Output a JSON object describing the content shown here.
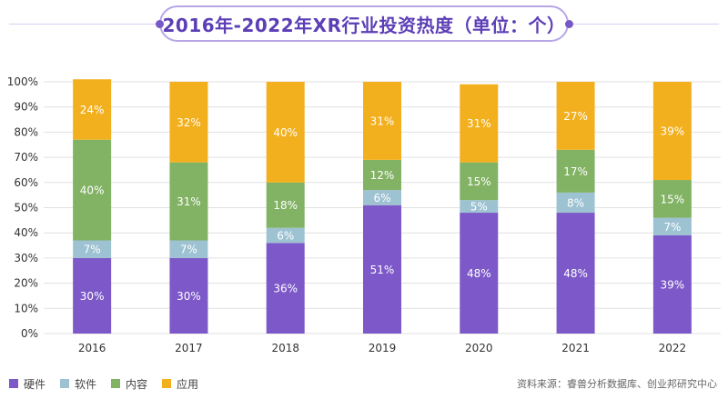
{
  "header": {
    "title": "2016年-2022年XR行业投资热度（单位：个）"
  },
  "colors": {
    "hardware": "#7c58c8",
    "software": "#9dc2d2",
    "content": "#82b264",
    "application": "#f2b01e",
    "title_text": "#5c3fb6",
    "title_border": "#b7a6e6"
  },
  "source": "资料来源：睿兽分析数据库、创业邦研究中心",
  "chart_data": {
    "type": "bar",
    "stacked": true,
    "categories": [
      "2016",
      "2017",
      "2018",
      "2019",
      "2020",
      "2021",
      "2022"
    ],
    "y_ticks": [
      "0%",
      "10%",
      "20%",
      "30%",
      "40%",
      "50%",
      "60%",
      "70%",
      "80%",
      "90%",
      "100%"
    ],
    "ylim": [
      0,
      100
    ],
    "legend_position": "bottom-left",
    "series": [
      {
        "name": "硬件",
        "color": "#7c58c8",
        "values": [
          30,
          30,
          36,
          51,
          48,
          48,
          39
        ],
        "labels": [
          "30%",
          "30%",
          "36%",
          "51%",
          "48%",
          "48%",
          "39%"
        ]
      },
      {
        "name": "软件",
        "color": "#9dc2d2",
        "values": [
          7,
          7,
          6,
          6,
          5,
          8,
          7
        ],
        "labels": [
          "7%",
          "7%",
          "6%",
          "6%",
          "5%",
          "8%",
          "7%"
        ]
      },
      {
        "name": "内容",
        "color": "#82b264",
        "values": [
          40,
          31,
          18,
          12,
          15,
          17,
          15
        ],
        "labels": [
          "40%",
          "31%",
          "18%",
          "12%",
          "15%",
          "17%",
          "15%"
        ]
      },
      {
        "name": "应用",
        "color": "#f2b01e",
        "values": [
          24,
          32,
          40,
          31,
          31,
          27,
          39
        ],
        "labels": [
          "24%",
          "32%",
          "40%",
          "31%",
          "31%",
          "27%",
          "39%"
        ]
      }
    ]
  }
}
